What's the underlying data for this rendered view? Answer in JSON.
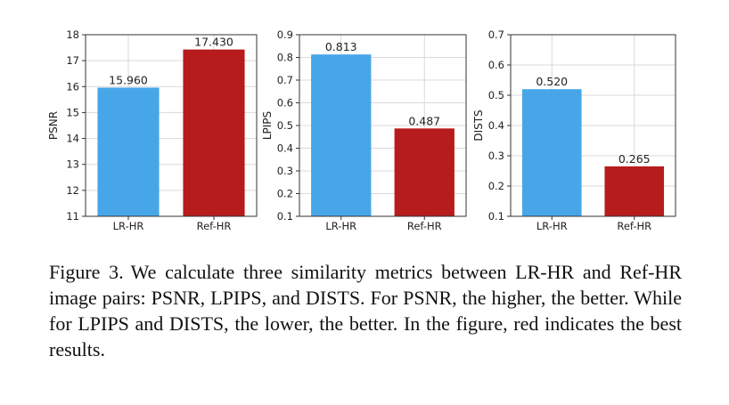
{
  "chart_data": [
    {
      "type": "bar",
      "categories": [
        "LR-HR",
        "Ref-HR"
      ],
      "values": [
        15.96,
        17.43
      ],
      "value_labels": [
        "15.960",
        "17.430"
      ],
      "ylabel": "PSNR",
      "ylim": [
        11,
        18
      ],
      "yticks": [
        "11",
        "12",
        "13",
        "14",
        "15",
        "16",
        "17",
        "18"
      ],
      "colors": [
        "#46a6e8",
        "#b71c1c"
      ],
      "grid": true
    },
    {
      "type": "bar",
      "categories": [
        "LR-HR",
        "Ref-HR"
      ],
      "values": [
        0.813,
        0.487
      ],
      "value_labels": [
        "0.813",
        "0.487"
      ],
      "ylabel": "LPIPS",
      "ylim": [
        0.1,
        0.9
      ],
      "yticks": [
        "0.1",
        "0.2",
        "0.3",
        "0.4",
        "0.5",
        "0.6",
        "0.7",
        "0.8",
        "0.9"
      ],
      "colors": [
        "#46a6e8",
        "#b71c1c"
      ],
      "grid": true
    },
    {
      "type": "bar",
      "categories": [
        "LR-HR",
        "Ref-HR"
      ],
      "values": [
        0.52,
        0.265
      ],
      "value_labels": [
        "0.520",
        "0.265"
      ],
      "ylabel": "DISTS",
      "ylim": [
        0.1,
        0.7
      ],
      "yticks": [
        "0.1",
        "0.2",
        "0.3",
        "0.4",
        "0.5",
        "0.6",
        "0.7"
      ],
      "colors": [
        "#46a6e8",
        "#b71c1c"
      ],
      "grid": true
    }
  ],
  "caption": {
    "label": "Figure 3.",
    "text": "We calculate three similarity metrics between LR-HR and Ref-HR image pairs: PSNR, LPIPS, and DISTS. For PSNR, the higher, the better. While for LPIPS and DISTS, the lower, the better. In the figure, red indicates the best results."
  }
}
